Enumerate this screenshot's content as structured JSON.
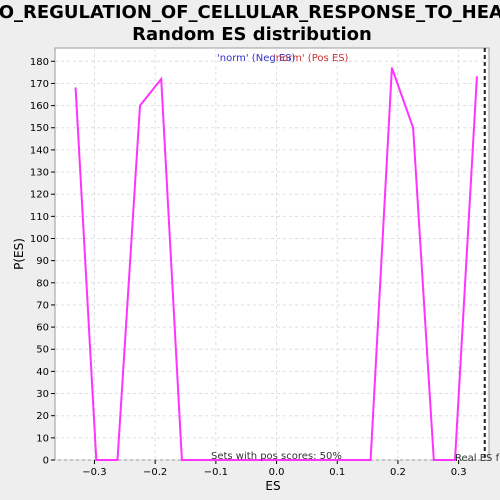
{
  "chart_data": {
    "type": "line",
    "title_line1": "GO_REGULATION_OF_CELLULAR_RESPONSE_TO_HEAT:",
    "title_line2": "Random ES distribution",
    "xlabel": "ES",
    "ylabel": "P(ES)",
    "xlim": [
      -0.365,
      0.35
    ],
    "ylim": [
      0,
      186
    ],
    "x_ticks": [
      -0.3,
      -0.2,
      -0.1,
      0.0,
      0.1,
      0.2,
      0.3
    ],
    "x_tick_labels": [
      "−0.3",
      "−0.2",
      "−0.1",
      "0.0",
      "0.1",
      "0.2",
      "0.3"
    ],
    "y_ticks": [
      0,
      10,
      20,
      30,
      40,
      50,
      60,
      70,
      80,
      90,
      100,
      110,
      120,
      130,
      140,
      150,
      160,
      170,
      180
    ],
    "grid": true,
    "legend": [
      {
        "label": "'norm' (Neg ES)",
        "color": "#3333cc"
      },
      {
        "label": "'norm' (Pos ES)",
        "color": "#cc3333"
      }
    ],
    "series": [
      {
        "color": "#ff33ff",
        "x": [
          -0.331,
          -0.297,
          -0.262,
          -0.225,
          -0.19,
          -0.156,
          0.155,
          0.19,
          0.225,
          0.259,
          0.294,
          0.33
        ],
        "y": [
          168,
          0,
          0,
          160,
          172,
          0,
          0,
          177,
          150,
          0,
          0,
          173
        ]
      }
    ],
    "real_es": {
      "x": 0.343,
      "label": "Real ES f"
    },
    "annotation": "Sets with pos scores: 50%"
  }
}
